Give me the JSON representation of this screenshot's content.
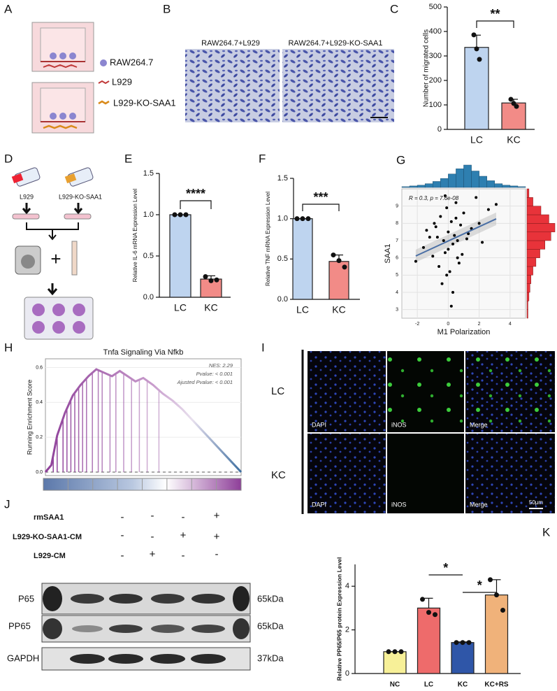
{
  "panel_labels": [
    "A",
    "B",
    "C",
    "D",
    "E",
    "F",
    "G",
    "H",
    "I",
    "J",
    "K"
  ],
  "panel_a": {
    "legend": [
      "RAW264.7",
      "L929",
      "L929-KO-SAA1"
    ]
  },
  "panel_b": {
    "captions": [
      "RAW264.7+L929",
      "RAW264.7+L929-KO-SAA1"
    ]
  },
  "panel_d": {
    "labels": [
      "L929",
      "L929-KO-SAA1"
    ],
    "plus": "+"
  },
  "panel_i": {
    "rows": [
      "LC",
      "KC"
    ],
    "channels": [
      "DAPI",
      "iNOS",
      "Merge"
    ],
    "scale_bar": "50μm"
  },
  "panel_j": {
    "treatments": [
      {
        "name": "rmSAA1",
        "signs": [
          "-",
          "-",
          "-",
          "+"
        ]
      },
      {
        "name": "L929-KO-SAA1-CM",
        "signs": [
          "-",
          "-",
          "+",
          "+"
        ]
      },
      {
        "name": "L929-CM",
        "signs": [
          "-",
          "+",
          "-",
          "-"
        ]
      }
    ],
    "bands": [
      {
        "name": "P65",
        "size": "65kDa"
      },
      {
        "name": "PP65",
        "size": "65kDa"
      },
      {
        "name": "GAPDH",
        "size": "37kDa"
      }
    ]
  },
  "chart_data": [
    {
      "type": "bar",
      "ylabel": "Number of migrated cells",
      "categories": [
        "LC",
        "KC"
      ],
      "values": [
        335,
        108
      ],
      "errors": [
        50,
        15
      ],
      "points": [
        [
          386,
          329,
          286
        ],
        [
          123,
          106,
          94
        ]
      ],
      "colors": [
        "#bed4ef",
        "#f28b87"
      ],
      "ylim": [
        0,
        500
      ],
      "yticks": [
        0,
        100,
        200,
        300,
        400,
        500
      ],
      "significance": "**"
    },
    {
      "type": "bar",
      "ylabel": "Relative IL-6 mRNA Expression Level",
      "categories": [
        "LC",
        "KC"
      ],
      "values": [
        1,
        0.22
      ],
      "errors": [
        0,
        0.04
      ],
      "points": [
        [
          1,
          1,
          1
        ],
        [
          0.25,
          0.2,
          0.21
        ]
      ],
      "colors": [
        "#bed4ef",
        "#f28b87"
      ],
      "ylim": [
        0,
        1.5
      ],
      "yticks": [
        {
          "value": 0,
          "label": "0.0"
        },
        0.5,
        {
          "value": 1,
          "label": "1.0"
        },
        {
          "value": 1.5,
          "label": "1.5"
        }
      ],
      "significance": "****"
    },
    {
      "type": "bar",
      "ylabel": "Relative TNF mRNA Expression Level",
      "categories": [
        "LC",
        "KC"
      ],
      "values": [
        1,
        0.47
      ],
      "errors": [
        0,
        0.08
      ],
      "points": [
        [
          1,
          1,
          1
        ],
        [
          0.55,
          0.48,
          0.4
        ]
      ],
      "colors": [
        "#bed4ef",
        "#f28b87"
      ],
      "ylim": [
        0,
        1.5
      ],
      "yticks": [
        {
          "value": 0,
          "label": "0.0"
        },
        0.5,
        {
          "value": 1,
          "label": "1.0"
        },
        {
          "value": 1.5,
          "label": "1.5"
        }
      ],
      "significance": "***"
    },
    {
      "type": "scatter",
      "xlabel": "M1 Polarization",
      "ylabel": "SAA1",
      "annotation": "R = 0.3, p = 7.6e-08",
      "x": [
        -2.1,
        -1.6,
        -1.2,
        -1.0,
        -0.8,
        -0.6,
        -0.5,
        -0.3,
        -0.2,
        -0.1,
        0.0,
        0.1,
        0.2,
        0.3,
        0.4,
        0.5,
        0.6,
        0.8,
        1.0,
        1.2,
        1.5,
        1.8,
        2.2,
        2.6,
        3.1,
        -0.4,
        0.2,
        -0.9,
        0.7,
        0.0,
        1.3,
        -0.2,
        0.5,
        -1.4,
        0.9,
        2.0,
        -0.7,
        0.3,
        -0.1,
        0.6
      ],
      "y": [
        5.8,
        6.6,
        7.2,
        6.1,
        7.8,
        5.5,
        8.4,
        7.0,
        6.3,
        8.9,
        7.5,
        5.2,
        8.1,
        6.8,
        7.3,
        9.2,
        6.0,
        7.9,
        8.6,
        7.1,
        7.7,
        9.5,
        6.9,
        8.8,
        9.1,
        4.5,
        3.2,
        8.0,
        5.7,
        6.5,
        7.4,
        9.6,
        8.3,
        7.6,
        6.2,
        8.0,
        7.2,
        4.0,
        5.0,
        7.0
      ],
      "color": "#000000",
      "line_color": "#4a6fa5",
      "hist_color_x": "#2e7fb0",
      "hist_color_y": "#e8333a",
      "xlim": [
        -3,
        5
      ],
      "xticks": [
        -2,
        0,
        2,
        4
      ],
      "ylim": [
        2.5,
        10
      ],
      "yticks": [
        3,
        4,
        5,
        6,
        7,
        8,
        9
      ],
      "grid": true,
      "x_hist": {
        "bins": [
          -3,
          -2.5,
          -2,
          -1.5,
          -1,
          -0.5,
          0,
          0.5,
          1,
          1.5,
          2,
          2.5,
          3,
          3.5,
          4,
          4.5,
          5
        ],
        "counts": [
          1,
          2,
          3,
          5,
          8,
          12,
          18,
          25,
          30,
          22,
          15,
          9,
          5,
          3,
          2,
          1
        ]
      },
      "y_hist": {
        "bins": [
          2.5,
          3,
          3.5,
          4,
          4.5,
          5,
          5.5,
          6,
          6.5,
          7,
          7.5,
          8,
          8.5,
          9,
          9.5,
          10
        ],
        "counts": [
          1,
          1,
          2,
          3,
          4,
          6,
          9,
          13,
          18,
          24,
          28,
          22,
          14,
          6,
          2
        ]
      }
    },
    {
      "type": "line",
      "title": "Tnfa Signaling Via Nfkb",
      "ylabel": "Running Enrichment Score",
      "annotations": [
        "NES: 2.29",
        "Pvalue: < 0.001",
        "Ajusted Pvalue: < 0.001"
      ],
      "x": [
        0,
        3,
        6,
        10,
        14,
        18,
        22,
        26,
        30,
        34,
        38,
        42,
        46,
        50,
        55,
        60,
        65,
        70,
        75,
        80,
        85,
        90,
        95,
        100
      ],
      "values": [
        0,
        0.04,
        0.21,
        0.34,
        0.44,
        0.5,
        0.55,
        0.59,
        0.57,
        0.55,
        0.58,
        0.55,
        0.52,
        0.54,
        0.5,
        0.45,
        0.41,
        0.36,
        0.3,
        0.24,
        0.18,
        0.12,
        0.06,
        0
      ],
      "hits": [
        4,
        6,
        9,
        11,
        13,
        15,
        17,
        19,
        21,
        24,
        27,
        29,
        33,
        36,
        40,
        44,
        48,
        52,
        58
      ],
      "xlim": [
        0,
        100
      ],
      "ylim": [
        -0.02,
        0.65
      ],
      "yticks": [
        {
          "value": 0,
          "label": "0.0"
        },
        0.2,
        0.4,
        0.6
      ],
      "color": "#8e3f99"
    },
    {
      "type": "bar",
      "ylabel": "Relative PP65/P65 protein Expression Level",
      "categories": [
        "NC",
        "LC",
        "KC",
        "KC+RS"
      ],
      "values": [
        1,
        3,
        1.42,
        3.6
      ],
      "errors": [
        0,
        0.45,
        0.03,
        0.7
      ],
      "points": [
        [
          1,
          1,
          1
        ],
        [
          3.4,
          2.8,
          2.7
        ],
        [
          1.42,
          1.42,
          1.42
        ],
        [
          4.3,
          3.6,
          2.9
        ]
      ],
      "colors": [
        "#f7f098",
        "#ee6b6b",
        "#2f56a8",
        "#f0b27a"
      ],
      "ylim": [
        0,
        5
      ],
      "yticks": [
        0,
        2,
        4
      ],
      "significance": [
        "*",
        "*"
      ]
    }
  ]
}
